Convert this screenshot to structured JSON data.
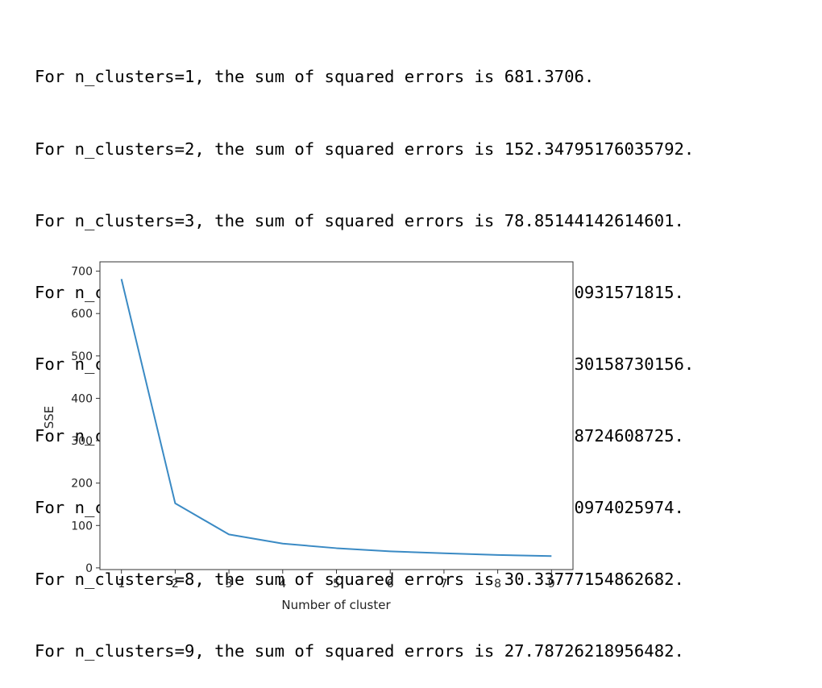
{
  "output_lines": [
    "For n_clusters=1, the sum of squared errors is 681.3706.",
    "For n_clusters=2, the sum of squared errors is 152.34795176035792.",
    "For n_clusters=3, the sum of squared errors is 78.85144142614601.",
    "For n_clusters=4, the sum of squared errors is 57.25600931571815.",
    "For n_clusters=5, the sum of squared errors is 46.472230158730156.",
    "For n_clusters=6, the sum of squared errors is 39.03998724608725.",
    "For n_clusters=7, the sum of squared errors is 34.40900974025974.",
    "For n_clusters=8, the sum of squared errors is 30.33777154862682.",
    "For n_clusters=9, the sum of squared errors is 27.78726218956482."
  ],
  "chart_data": {
    "type": "line",
    "title": "",
    "xlabel": "Number of cluster",
    "ylabel": "SSE",
    "x": [
      1,
      2,
      3,
      4,
      5,
      6,
      7,
      8,
      9
    ],
    "series": [
      {
        "values": [
          681.3706,
          152.34795176035792,
          78.85144142614601,
          57.25600931571815,
          46.472230158730156,
          39.03998724608725,
          34.40900974025974,
          30.33777154862682,
          27.78726218956482
        ],
        "color": "#3a8ac4"
      }
    ],
    "xticks": [
      "1",
      "2",
      "3",
      "4",
      "5",
      "6",
      "7",
      "8",
      "9"
    ],
    "yticks": [
      "0",
      "100",
      "200",
      "300",
      "400",
      "500",
      "600",
      "700"
    ],
    "ytick_values": [
      0,
      100,
      200,
      300,
      400,
      500,
      600,
      700
    ],
    "xlim": [
      0.6,
      9.4
    ],
    "ylim": [
      -4,
      722
    ],
    "grid": false,
    "legend": "none"
  }
}
